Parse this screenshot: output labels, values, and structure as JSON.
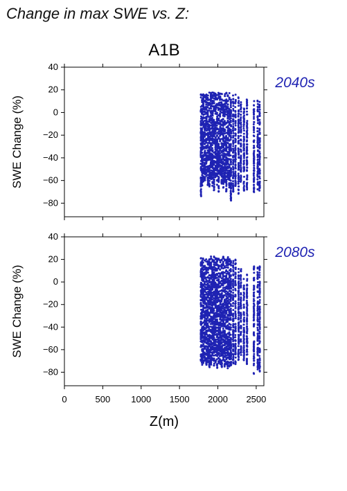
{
  "figure": {
    "title": "Change in max SWE vs. Z:",
    "scenario": "A1B",
    "xlabel": "Z(m)",
    "ylabel": "SWE Change (%)"
  },
  "colors": {
    "points": "#1f23b3",
    "period_label": "#1f23b3",
    "axis": "#000000"
  },
  "chart_data": [
    {
      "type": "scatter",
      "title": "A1B",
      "period": "2040s",
      "xlabel": "",
      "ylabel": "SWE Change (%)",
      "xlim": [
        0,
        2600
      ],
      "ylim": [
        -92,
        40
      ],
      "x_ticks": [
        0,
        500,
        1000,
        1500,
        2000,
        2500
      ],
      "y_ticks": [
        40,
        20,
        0,
        -20,
        -40,
        -60,
        -80
      ],
      "x_tick_labels_shown": false,
      "grid": false,
      "series": [
        {
          "x_range": [
            1760,
            2560
          ],
          "y_range": [
            -78,
            18
          ],
          "columns": [
            {
              "x": 1780,
              "ymin": -74,
              "ymax": 17
            },
            {
              "x": 1795,
              "ymin": -65,
              "ymax": 16
            },
            {
              "x": 1810,
              "ymin": -62,
              "ymax": 17
            },
            {
              "x": 1830,
              "ymin": -60,
              "ymax": 17
            },
            {
              "x": 1850,
              "ymin": -58,
              "ymax": 16
            },
            {
              "x": 1870,
              "ymin": -66,
              "ymax": 18
            },
            {
              "x": 1890,
              "ymin": -68,
              "ymax": 18
            },
            {
              "x": 1910,
              "ymin": -60,
              "ymax": 18
            },
            {
              "x": 1930,
              "ymin": -65,
              "ymax": 18
            },
            {
              "x": 1950,
              "ymin": -69,
              "ymax": 18
            },
            {
              "x": 1970,
              "ymin": -58,
              "ymax": 17
            },
            {
              "x": 1990,
              "ymin": -64,
              "ymax": 18
            },
            {
              "x": 2010,
              "ymin": -70,
              "ymax": 18
            },
            {
              "x": 2030,
              "ymin": -55,
              "ymax": 18
            },
            {
              "x": 2050,
              "ymin": -63,
              "ymax": 17
            },
            {
              "x": 2070,
              "ymin": -68,
              "ymax": 18
            },
            {
              "x": 2090,
              "ymin": -62,
              "ymax": 17
            },
            {
              "x": 2110,
              "ymin": -70,
              "ymax": 18
            },
            {
              "x": 2130,
              "ymin": -59,
              "ymax": 17
            },
            {
              "x": 2150,
              "ymin": -67,
              "ymax": 18
            },
            {
              "x": 2170,
              "ymin": -78,
              "ymax": 16
            },
            {
              "x": 2200,
              "ymin": -70,
              "ymax": 16
            },
            {
              "x": 2230,
              "ymin": -66,
              "ymax": 16
            },
            {
              "x": 2270,
              "ymin": -72,
              "ymax": 14
            },
            {
              "x": 2300,
              "ymin": -63,
              "ymax": 11
            },
            {
              "x": 2340,
              "ymin": -69,
              "ymax": 9
            },
            {
              "x": 2380,
              "ymin": -72,
              "ymax": 12
            },
            {
              "x": 2470,
              "ymin": -71,
              "ymax": 11
            },
            {
              "x": 2520,
              "ymin": -68,
              "ymax": 11
            },
            {
              "x": 2545,
              "ymin": -69,
              "ymax": 10
            }
          ]
        }
      ]
    },
    {
      "type": "scatter",
      "title": "",
      "period": "2080s",
      "xlabel": "Z(m)",
      "ylabel": "SWE Change (%)",
      "xlim": [
        0,
        2600
      ],
      "ylim": [
        -92,
        40
      ],
      "x_ticks": [
        0,
        500,
        1000,
        1500,
        2000,
        2500
      ],
      "y_ticks": [
        40,
        20,
        0,
        -20,
        -40,
        -60,
        -80
      ],
      "x_tick_labels_shown": true,
      "grid": false,
      "series": [
        {
          "x_range": [
            1760,
            2560
          ],
          "y_range": [
            -82,
            24
          ],
          "columns": [
            {
              "x": 1780,
              "ymin": -70,
              "ymax": 22
            },
            {
              "x": 1795,
              "ymin": -74,
              "ymax": 23
            },
            {
              "x": 1810,
              "ymin": -72,
              "ymax": 21
            },
            {
              "x": 1830,
              "ymin": -70,
              "ymax": 20
            },
            {
              "x": 1850,
              "ymin": -74,
              "ymax": 21
            },
            {
              "x": 1870,
              "ymin": -72,
              "ymax": 20
            },
            {
              "x": 1890,
              "ymin": -76,
              "ymax": 22
            },
            {
              "x": 1910,
              "ymin": -74,
              "ymax": 24
            },
            {
              "x": 1930,
              "ymin": -70,
              "ymax": 23
            },
            {
              "x": 1950,
              "ymin": -75,
              "ymax": 24
            },
            {
              "x": 1970,
              "ymin": -73,
              "ymax": 23
            },
            {
              "x": 1990,
              "ymin": -77,
              "ymax": 24
            },
            {
              "x": 2010,
              "ymin": -72,
              "ymax": 23
            },
            {
              "x": 2030,
              "ymin": -74,
              "ymax": 24
            },
            {
              "x": 2050,
              "ymin": -76,
              "ymax": 23
            },
            {
              "x": 2070,
              "ymin": -71,
              "ymax": 23
            },
            {
              "x": 2090,
              "ymin": -75,
              "ymax": 22
            },
            {
              "x": 2110,
              "ymin": -73,
              "ymax": 22
            },
            {
              "x": 2130,
              "ymin": -77,
              "ymax": 22
            },
            {
              "x": 2150,
              "ymin": -76,
              "ymax": 23
            },
            {
              "x": 2170,
              "ymin": -74,
              "ymax": 21
            },
            {
              "x": 2200,
              "ymin": -73,
              "ymax": 21
            },
            {
              "x": 2230,
              "ymin": -74,
              "ymax": 20
            },
            {
              "x": 2270,
              "ymin": -70,
              "ymax": 15
            },
            {
              "x": 2300,
              "ymin": -69,
              "ymax": 12
            },
            {
              "x": 2340,
              "ymin": -72,
              "ymax": 6
            },
            {
              "x": 2380,
              "ymin": -74,
              "ymax": 12
            },
            {
              "x": 2470,
              "ymin": -82,
              "ymax": 14
            },
            {
              "x": 2520,
              "ymin": -78,
              "ymax": 13
            },
            {
              "x": 2545,
              "ymin": -80,
              "ymax": 14
            }
          ]
        }
      ]
    }
  ]
}
